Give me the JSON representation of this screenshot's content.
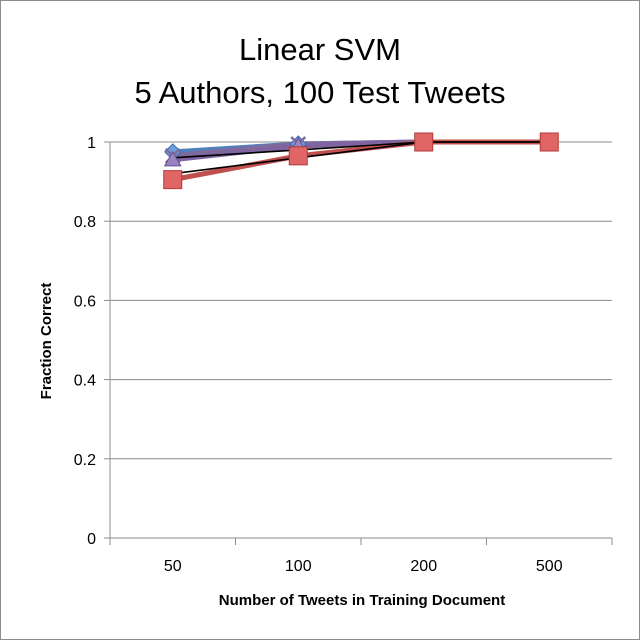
{
  "chart_data": {
    "type": "line",
    "title_lines": [
      "Linear SVM",
      "5 Authors, 100 Test Tweets"
    ],
    "xlabel": "Number of Tweets in Training Document",
    "ylabel": "Fraction Correct",
    "categories": [
      "50",
      "100",
      "200",
      "500"
    ],
    "ylim": [
      0,
      1
    ],
    "y_ticks": [
      "0",
      "0.2",
      "0.4",
      "0.6",
      "0.8",
      "1"
    ],
    "grid": "horizontal",
    "legend": "none",
    "series": [
      {
        "marker": "diamond",
        "color": "#4F81BD",
        "values": [
          0.975,
          0.995,
          1.0,
          1.0
        ]
      },
      {
        "marker": "x",
        "color": "#7F6A9E",
        "values": [
          0.965,
          0.995,
          1.0,
          1.0
        ]
      },
      {
        "marker": "triangle",
        "color": "#8064A2",
        "values": [
          0.955,
          0.99,
          1.0,
          1.0
        ]
      },
      {
        "marker": "square",
        "color": "#C0504D",
        "values": [
          0.905,
          0.965,
          1.0,
          1.0
        ]
      }
    ],
    "trendlines": [
      {
        "color": "#000000",
        "values": [
          0.96,
          0.98,
          1.0,
          1.0
        ]
      },
      {
        "color": "#000000",
        "values": [
          0.92,
          0.96,
          1.0,
          1.0
        ]
      }
    ]
  }
}
